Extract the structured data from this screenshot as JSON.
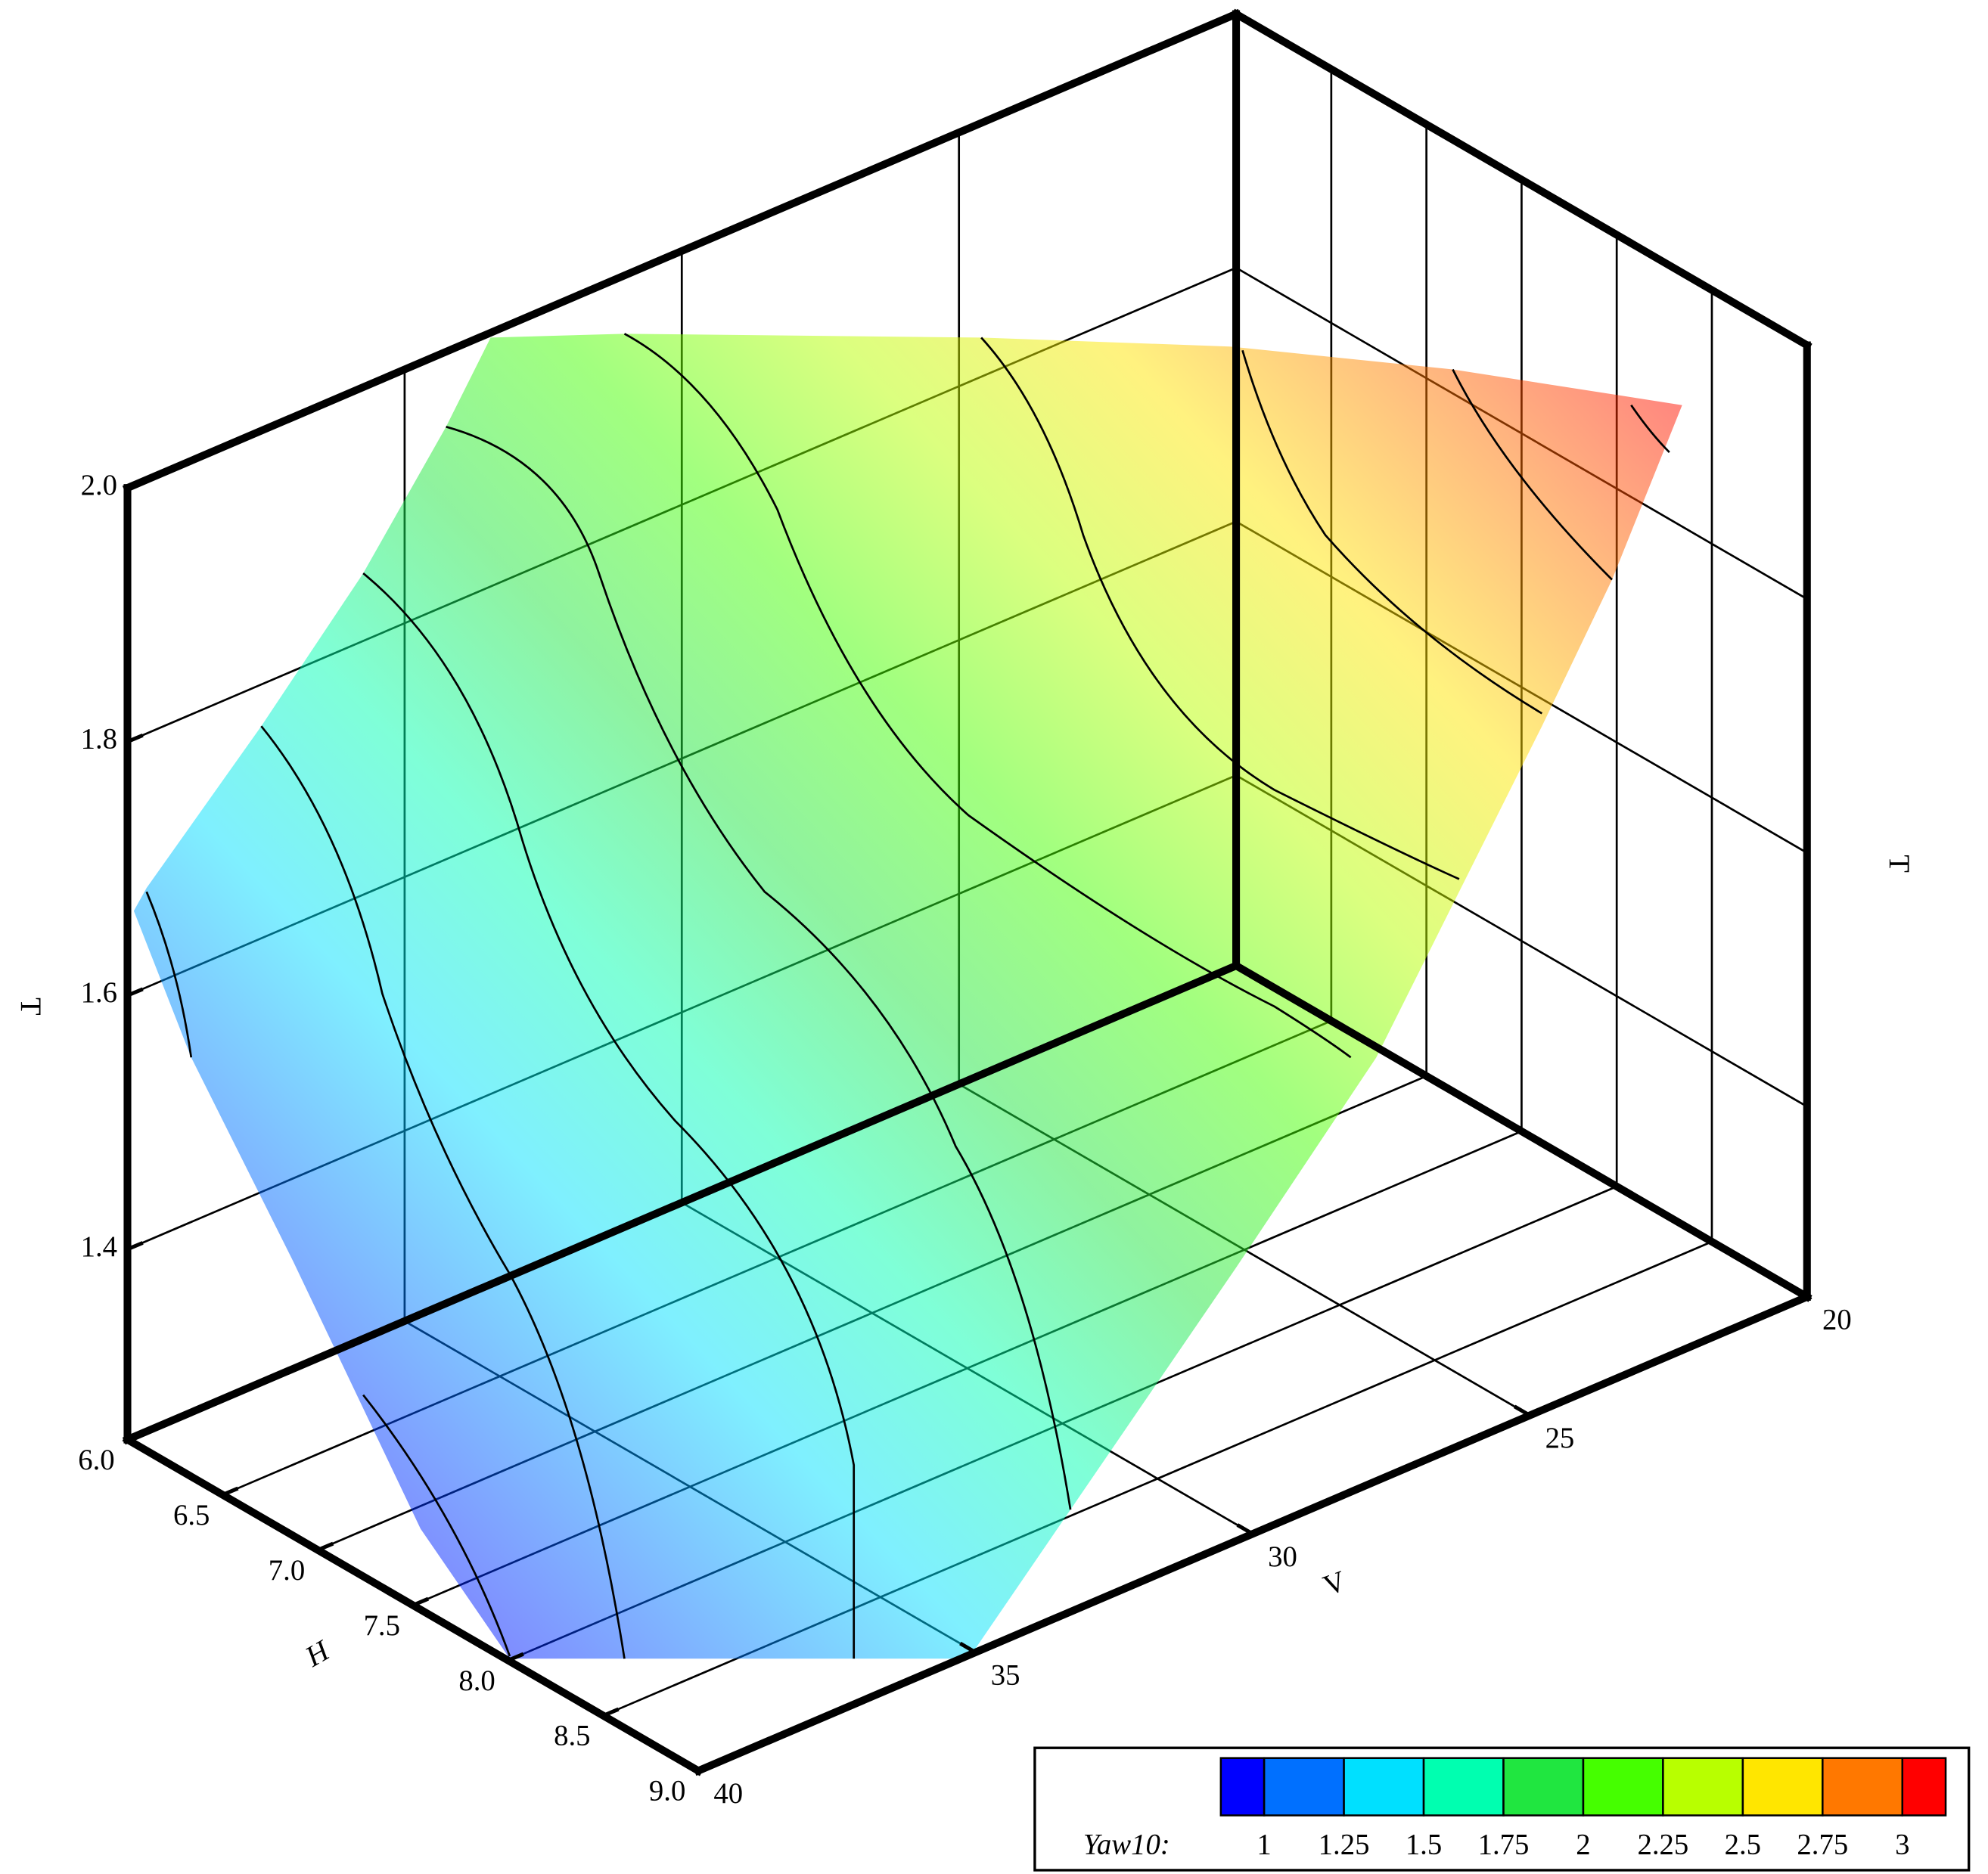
{
  "chart_data": {
    "type": "surface3d",
    "x_label": "H",
    "y_label": "V",
    "z_label": "T",
    "xlim": [
      6,
      9
    ],
    "xticks": [
      {
        "value": 6,
        "label": "6.0"
      },
      6.5,
      {
        "value": 7,
        "label": "7.0"
      },
      7.5,
      {
        "value": 8,
        "label": "8.0"
      },
      8.5,
      {
        "value": 9,
        "label": "9.0"
      }
    ],
    "ylim": [
      20,
      40
    ],
    "yticks": [
      20,
      25,
      30,
      35,
      40
    ],
    "zlim": [
      1.25,
      2.0
    ],
    "zticks": [
      1.4,
      1.6,
      1.8,
      {
        "value": 2,
        "label": "2.0"
      }
    ],
    "grid": true,
    "legend": {
      "title": "Yaw10:",
      "levels": [
        1,
        1.25,
        1.5,
        1.75,
        2,
        2.25,
        2.5,
        2.75,
        3
      ],
      "colors": [
        "#0000ff",
        "#0070ff",
        "#00e0ff",
        "#00ffb0",
        "#20e640",
        "#45ff00",
        "#b8ff00",
        "#ffe600",
        "#ff7800",
        "#ff0000"
      ]
    }
  }
}
